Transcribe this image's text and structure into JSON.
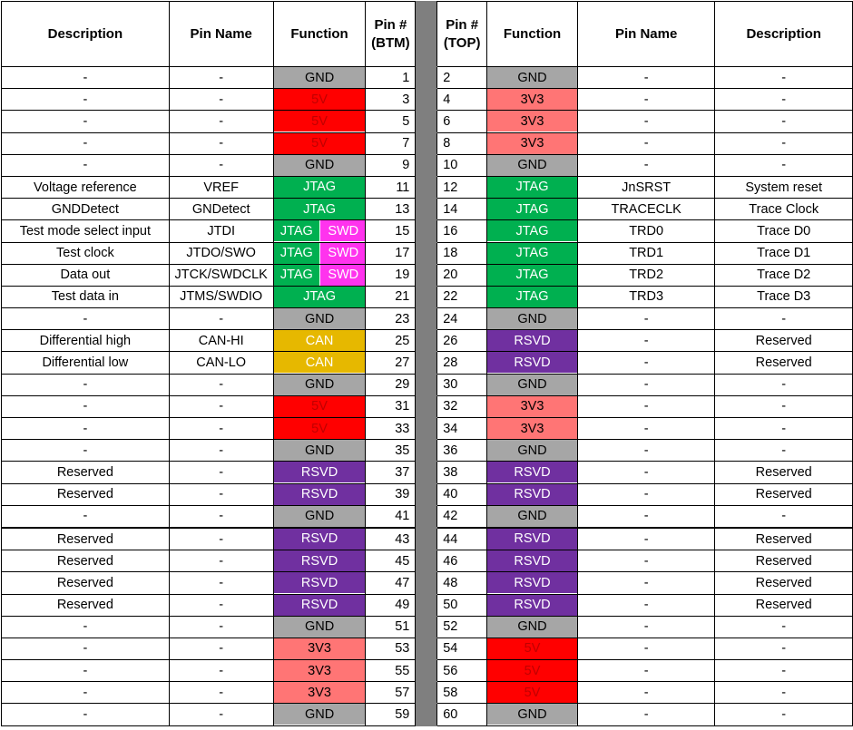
{
  "headers": {
    "desc_left": "Description",
    "pin_name_left": "Pin Name",
    "function_left": "Function",
    "pin_btm": "Pin #\n(BTM)",
    "pin_top": "Pin #\n(TOP)",
    "function_right": "Function",
    "pin_name_right": "Pin Name",
    "desc_right": "Description"
  },
  "function_styles": {
    "GND": {
      "bg": "#a6a6a6",
      "fg": "#000000"
    },
    "5V": {
      "bg": "#ff0000",
      "fg": "#c00000"
    },
    "3V3": {
      "bg": "#ff7575",
      "fg": "#000000"
    },
    "JTAG": {
      "bg": "#00b050",
      "fg": "#ffffff"
    },
    "SWD": {
      "bg": "#ff33ee",
      "fg": "#ffffff"
    },
    "CAN": {
      "bg": "#e6b800",
      "fg": "#ffffff"
    },
    "RSVD": {
      "bg": "#7030a0",
      "fg": "#ffffff"
    }
  },
  "rows": [
    {
      "desc_b": "-",
      "name_b": "-",
      "fn_b": [
        "GND"
      ],
      "pin_b": "1",
      "pin_t": "2",
      "fn_t": [
        "GND"
      ],
      "name_t": "-",
      "desc_t": "-"
    },
    {
      "desc_b": "-",
      "name_b": "-",
      "fn_b": [
        "5V"
      ],
      "pin_b": "3",
      "pin_t": "4",
      "fn_t": [
        "3V3"
      ],
      "name_t": "-",
      "desc_t": "-"
    },
    {
      "desc_b": "-",
      "name_b": "-",
      "fn_b": [
        "5V"
      ],
      "pin_b": "5",
      "pin_t": "6",
      "fn_t": [
        "3V3"
      ],
      "name_t": "-",
      "desc_t": "-"
    },
    {
      "desc_b": "-",
      "name_b": "-",
      "fn_b": [
        "5V"
      ],
      "pin_b": "7",
      "pin_t": "8",
      "fn_t": [
        "3V3"
      ],
      "name_t": "-",
      "desc_t": "-"
    },
    {
      "desc_b": "-",
      "name_b": "-",
      "fn_b": [
        "GND"
      ],
      "pin_b": "9",
      "pin_t": "10",
      "fn_t": [
        "GND"
      ],
      "name_t": "-",
      "desc_t": "-"
    },
    {
      "desc_b": "Voltage reference",
      "name_b": "VREF",
      "fn_b": [
        "JTAG"
      ],
      "pin_b": "11",
      "pin_t": "12",
      "fn_t": [
        "JTAG"
      ],
      "name_t": "JnSRST",
      "desc_t": "System reset"
    },
    {
      "desc_b": "GNDDetect",
      "name_b": "GNDetect",
      "fn_b": [
        "JTAG"
      ],
      "pin_b": "13",
      "pin_t": "14",
      "fn_t": [
        "JTAG"
      ],
      "name_t": "TRACECLK",
      "desc_t": "Trace Clock"
    },
    {
      "desc_b": "Test mode select input",
      "name_b": "JTDI",
      "fn_b": [
        "JTAG",
        "SWD"
      ],
      "pin_b": "15",
      "pin_t": "16",
      "fn_t": [
        "JTAG"
      ],
      "name_t": "TRD0",
      "desc_t": "Trace D0"
    },
    {
      "desc_b": "Test clock",
      "name_b": "JTDO/SWO",
      "fn_b": [
        "JTAG",
        "SWD"
      ],
      "pin_b": "17",
      "pin_t": "18",
      "fn_t": [
        "JTAG"
      ],
      "name_t": "TRD1",
      "desc_t": "Trace D1"
    },
    {
      "desc_b": "Data out",
      "name_b": "JTCK/SWDCLK",
      "fn_b": [
        "JTAG",
        "SWD"
      ],
      "pin_b": "19",
      "pin_t": "20",
      "fn_t": [
        "JTAG"
      ],
      "name_t": "TRD2",
      "desc_t": "Trace D2"
    },
    {
      "desc_b": "Test data in",
      "name_b": "JTMS/SWDIO",
      "fn_b": [
        "JTAG"
      ],
      "pin_b": "21",
      "pin_t": "22",
      "fn_t": [
        "JTAG"
      ],
      "name_t": "TRD3",
      "desc_t": "Trace D3"
    },
    {
      "desc_b": "-",
      "name_b": "-",
      "fn_b": [
        "GND"
      ],
      "pin_b": "23",
      "pin_t": "24",
      "fn_t": [
        "GND"
      ],
      "name_t": "-",
      "desc_t": "-"
    },
    {
      "desc_b": "Differential high",
      "name_b": "CAN-HI",
      "fn_b": [
        "CAN"
      ],
      "pin_b": "25",
      "pin_t": "26",
      "fn_t": [
        "RSVD"
      ],
      "name_t": "-",
      "desc_t": "Reserved"
    },
    {
      "desc_b": "Differential low",
      "name_b": "CAN-LO",
      "fn_b": [
        "CAN"
      ],
      "pin_b": "27",
      "pin_t": "28",
      "fn_t": [
        "RSVD"
      ],
      "name_t": "-",
      "desc_t": "Reserved"
    },
    {
      "desc_b": "-",
      "name_b": "-",
      "fn_b": [
        "GND"
      ],
      "pin_b": "29",
      "pin_t": "30",
      "fn_t": [
        "GND"
      ],
      "name_t": "-",
      "desc_t": "-"
    },
    {
      "desc_b": "-",
      "name_b": "-",
      "fn_b": [
        "5V"
      ],
      "pin_b": "31",
      "pin_t": "32",
      "fn_t": [
        "3V3"
      ],
      "name_t": "-",
      "desc_t": "-"
    },
    {
      "desc_b": "-",
      "name_b": "-",
      "fn_b": [
        "5V"
      ],
      "pin_b": "33",
      "pin_t": "34",
      "fn_t": [
        "3V3"
      ],
      "name_t": "-",
      "desc_t": "-"
    },
    {
      "desc_b": "-",
      "name_b": "-",
      "fn_b": [
        "GND"
      ],
      "pin_b": "35",
      "pin_t": "36",
      "fn_t": [
        "GND"
      ],
      "name_t": "-",
      "desc_t": "-"
    },
    {
      "desc_b": "Reserved",
      "name_b": "-",
      "fn_b": [
        "RSVD"
      ],
      "pin_b": "37",
      "pin_t": "38",
      "fn_t": [
        "RSVD"
      ],
      "name_t": "-",
      "desc_t": "Reserved"
    },
    {
      "desc_b": "Reserved",
      "name_b": "-",
      "fn_b": [
        "RSVD"
      ],
      "pin_b": "39",
      "pin_t": "40",
      "fn_t": [
        "RSVD"
      ],
      "name_t": "-",
      "desc_t": "Reserved"
    },
    {
      "desc_b": "-",
      "name_b": "-",
      "fn_b": [
        "GND"
      ],
      "pin_b": "41",
      "pin_t": "42",
      "fn_t": [
        "GND"
      ],
      "name_t": "-",
      "desc_t": "-"
    },
    {
      "desc_b": "Reserved",
      "name_b": "-",
      "fn_b": [
        "RSVD"
      ],
      "pin_b": "43",
      "pin_t": "44",
      "fn_t": [
        "RSVD"
      ],
      "name_t": "-",
      "desc_t": "Reserved"
    },
    {
      "desc_b": "Reserved",
      "name_b": "-",
      "fn_b": [
        "RSVD"
      ],
      "pin_b": "45",
      "pin_t": "46",
      "fn_t": [
        "RSVD"
      ],
      "name_t": "-",
      "desc_t": "Reserved"
    },
    {
      "desc_b": "Reserved",
      "name_b": "-",
      "fn_b": [
        "RSVD"
      ],
      "pin_b": "47",
      "pin_t": "48",
      "fn_t": [
        "RSVD"
      ],
      "name_t": "-",
      "desc_t": "Reserved"
    },
    {
      "desc_b": "Reserved",
      "name_b": "-",
      "fn_b": [
        "RSVD"
      ],
      "pin_b": "49",
      "pin_t": "50",
      "fn_t": [
        "RSVD"
      ],
      "name_t": "-",
      "desc_t": "Reserved"
    },
    {
      "desc_b": "-",
      "name_b": "-",
      "fn_b": [
        "GND"
      ],
      "pin_b": "51",
      "pin_t": "52",
      "fn_t": [
        "GND"
      ],
      "name_t": "-",
      "desc_t": "-"
    },
    {
      "desc_b": "-",
      "name_b": "-",
      "fn_b": [
        "3V3"
      ],
      "pin_b": "53",
      "pin_t": "54",
      "fn_t": [
        "5V"
      ],
      "name_t": "-",
      "desc_t": "-"
    },
    {
      "desc_b": "-",
      "name_b": "-",
      "fn_b": [
        "3V3"
      ],
      "pin_b": "55",
      "pin_t": "56",
      "fn_t": [
        "5V"
      ],
      "name_t": "-",
      "desc_t": "-"
    },
    {
      "desc_b": "-",
      "name_b": "-",
      "fn_b": [
        "3V3"
      ],
      "pin_b": "57",
      "pin_t": "58",
      "fn_t": [
        "5V"
      ],
      "name_t": "-",
      "desc_t": "-"
    },
    {
      "desc_b": "-",
      "name_b": "-",
      "fn_b": [
        "GND"
      ],
      "pin_b": "59",
      "pin_t": "60",
      "fn_t": [
        "GND"
      ],
      "name_t": "-",
      "desc_t": "-"
    }
  ]
}
